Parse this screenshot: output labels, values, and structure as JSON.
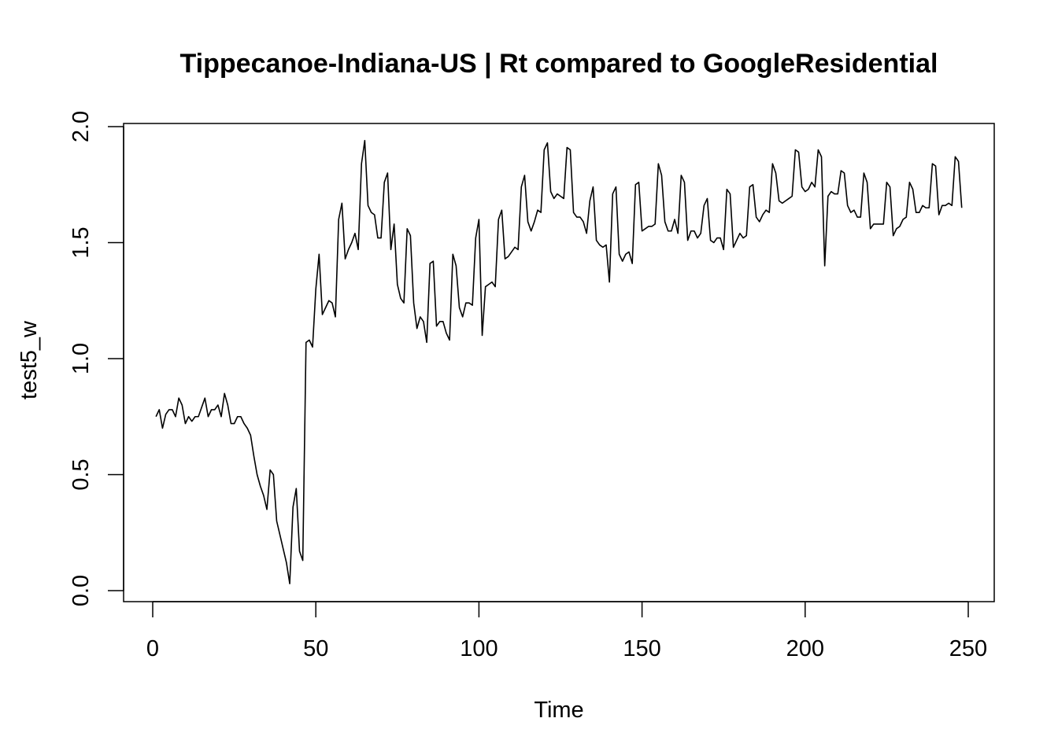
{
  "chart_data": {
    "type": "line",
    "title": "Tippecanoe-Indiana-US | Rt compared to GoogleResidential",
    "xlabel": "Time",
    "ylabel": "test5_w",
    "xlim": [
      0,
      250
    ],
    "ylim": [
      0,
      2
    ],
    "x_ticks": [
      0,
      50,
      100,
      150,
      200,
      250
    ],
    "x_tick_labels": [
      "0",
      "50",
      "100",
      "150",
      "200",
      "250"
    ],
    "y_ticks": [
      0,
      0.5,
      1,
      1.5,
      2
    ],
    "y_tick_labels": [
      "0.0",
      "0.5",
      "1.0",
      "1.5",
      "2.0"
    ],
    "grid": false,
    "line_color": "#000000",
    "series": [
      {
        "x_start": 1,
        "x_step": 1,
        "values": [
          0.75,
          0.78,
          0.7,
          0.76,
          0.78,
          0.78,
          0.75,
          0.83,
          0.8,
          0.72,
          0.75,
          0.73,
          0.75,
          0.75,
          0.79,
          0.83,
          0.75,
          0.78,
          0.78,
          0.8,
          0.75,
          0.85,
          0.8,
          0.72,
          0.72,
          0.75,
          0.75,
          0.72,
          0.7,
          0.67,
          0.58,
          0.5,
          0.45,
          0.41,
          0.35,
          0.52,
          0.5,
          0.3,
          0.24,
          0.18,
          0.12,
          0.03,
          0.36,
          0.44,
          0.17,
          0.13,
          1.07,
          1.08,
          1.05,
          1.3,
          1.45,
          1.19,
          1.22,
          1.25,
          1.24,
          1.18,
          1.6,
          1.67,
          1.43,
          1.47,
          1.5,
          1.54,
          1.47,
          1.84,
          1.94,
          1.66,
          1.63,
          1.62,
          1.52,
          1.52,
          1.76,
          1.8,
          1.47,
          1.58,
          1.32,
          1.26,
          1.24,
          1.56,
          1.53,
          1.24,
          1.13,
          1.18,
          1.16,
          1.07,
          1.41,
          1.42,
          1.14,
          1.16,
          1.16,
          1.11,
          1.08,
          1.45,
          1.4,
          1.22,
          1.18,
          1.24,
          1.24,
          1.23,
          1.52,
          1.6,
          1.1,
          1.31,
          1.32,
          1.33,
          1.31,
          1.6,
          1.64,
          1.43,
          1.44,
          1.46,
          1.48,
          1.47,
          1.74,
          1.79,
          1.59,
          1.55,
          1.59,
          1.64,
          1.63,
          1.9,
          1.93,
          1.72,
          1.69,
          1.71,
          1.7,
          1.69,
          1.91,
          1.9,
          1.63,
          1.61,
          1.61,
          1.59,
          1.54,
          1.68,
          1.74,
          1.51,
          1.49,
          1.48,
          1.49,
          1.33,
          1.71,
          1.74,
          1.45,
          1.42,
          1.45,
          1.46,
          1.41,
          1.75,
          1.76,
          1.55,
          1.56,
          1.57,
          1.57,
          1.58,
          1.84,
          1.79,
          1.59,
          1.55,
          1.55,
          1.6,
          1.54,
          1.79,
          1.76,
          1.51,
          1.55,
          1.55,
          1.52,
          1.54,
          1.66,
          1.69,
          1.51,
          1.5,
          1.52,
          1.52,
          1.47,
          1.73,
          1.71,
          1.48,
          1.51,
          1.54,
          1.52,
          1.53,
          1.74,
          1.75,
          1.61,
          1.59,
          1.62,
          1.64,
          1.63,
          1.84,
          1.8,
          1.68,
          1.67,
          1.68,
          1.69,
          1.7,
          1.9,
          1.89,
          1.74,
          1.72,
          1.73,
          1.76,
          1.74,
          1.9,
          1.87,
          1.4,
          1.7,
          1.72,
          1.71,
          1.71,
          1.81,
          1.8,
          1.66,
          1.63,
          1.64,
          1.61,
          1.61,
          1.8,
          1.76,
          1.56,
          1.58,
          1.58,
          1.58,
          1.58,
          1.76,
          1.74,
          1.53,
          1.56,
          1.57,
          1.6,
          1.61,
          1.76,
          1.73,
          1.63,
          1.63,
          1.66,
          1.65,
          1.65,
          1.84,
          1.83,
          1.62,
          1.66,
          1.66,
          1.67,
          1.66,
          1.87,
          1.85,
          1.65
        ]
      }
    ]
  }
}
